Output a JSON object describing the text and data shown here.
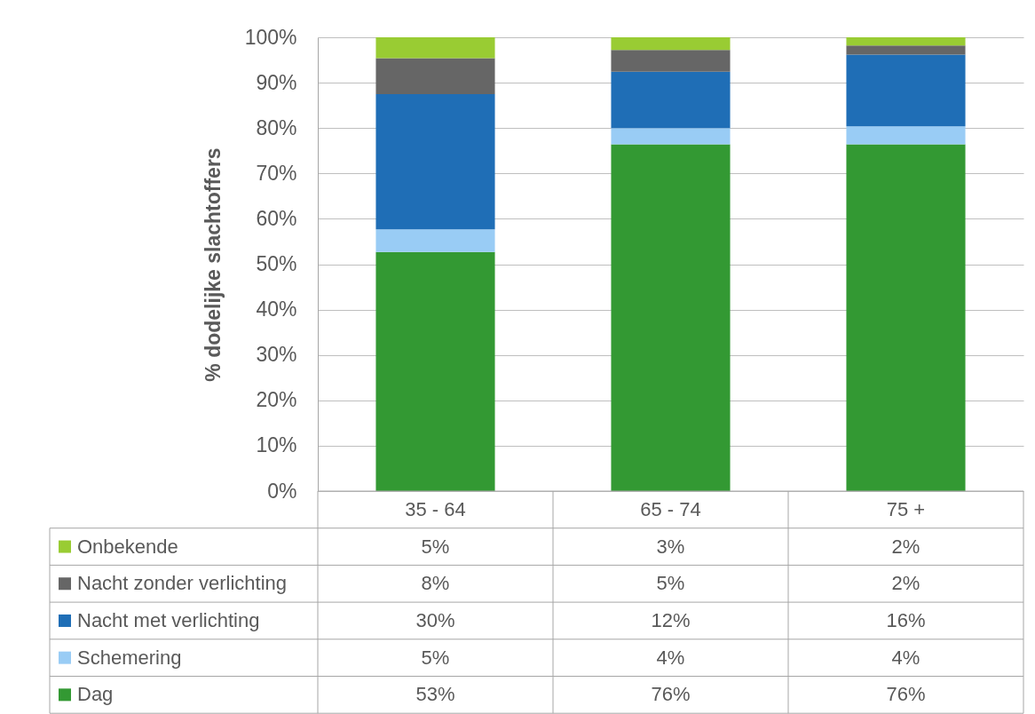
{
  "chart_data": {
    "type": "bar",
    "stacked": true,
    "ylabel": "% dodelijke slachtoffers",
    "categories": [
      "35 - 64",
      "65 - 74",
      "75 +"
    ],
    "series": [
      {
        "name": "Dag",
        "color": "#339933",
        "values": [
          52.7,
          76.4,
          76.4
        ],
        "value_labels": [
          "53%",
          "76%",
          "76%"
        ]
      },
      {
        "name": "Schemering",
        "color": "#99CCF5",
        "values": [
          5.0,
          3.6,
          4.0
        ],
        "value_labels": [
          "5%",
          "4%",
          "4%"
        ]
      },
      {
        "name": "Nacht met verlichting",
        "color": "#1F6EB6",
        "values": [
          29.8,
          12.4,
          15.8
        ],
        "value_labels": [
          "30%",
          "12%",
          "16%"
        ]
      },
      {
        "name": "Nacht zonder verlichting",
        "color": "#666666",
        "values": [
          7.9,
          4.8,
          2.0
        ],
        "value_labels": [
          "8%",
          "5%",
          "2%"
        ]
      },
      {
        "name": "Onbekende",
        "color": "#99CC33",
        "values": [
          4.6,
          2.8,
          1.8
        ],
        "value_labels": [
          "5%",
          "3%",
          "2%"
        ]
      }
    ],
    "ylim": [
      0,
      100
    ],
    "yticks": [
      {
        "value": 0,
        "label": "0%"
      },
      {
        "value": 10,
        "label": "10%"
      },
      {
        "value": 20,
        "label": "20%"
      },
      {
        "value": 30,
        "label": "30%"
      },
      {
        "value": 40,
        "label": "40%"
      },
      {
        "value": 50,
        "label": "50%"
      },
      {
        "value": 60,
        "label": "60%"
      },
      {
        "value": 70,
        "label": "70%"
      },
      {
        "value": 80,
        "label": "80%"
      },
      {
        "value": 90,
        "label": "90%"
      },
      {
        "value": 100,
        "label": "100%"
      }
    ],
    "grid": "y",
    "legend": "bottom left"
  }
}
